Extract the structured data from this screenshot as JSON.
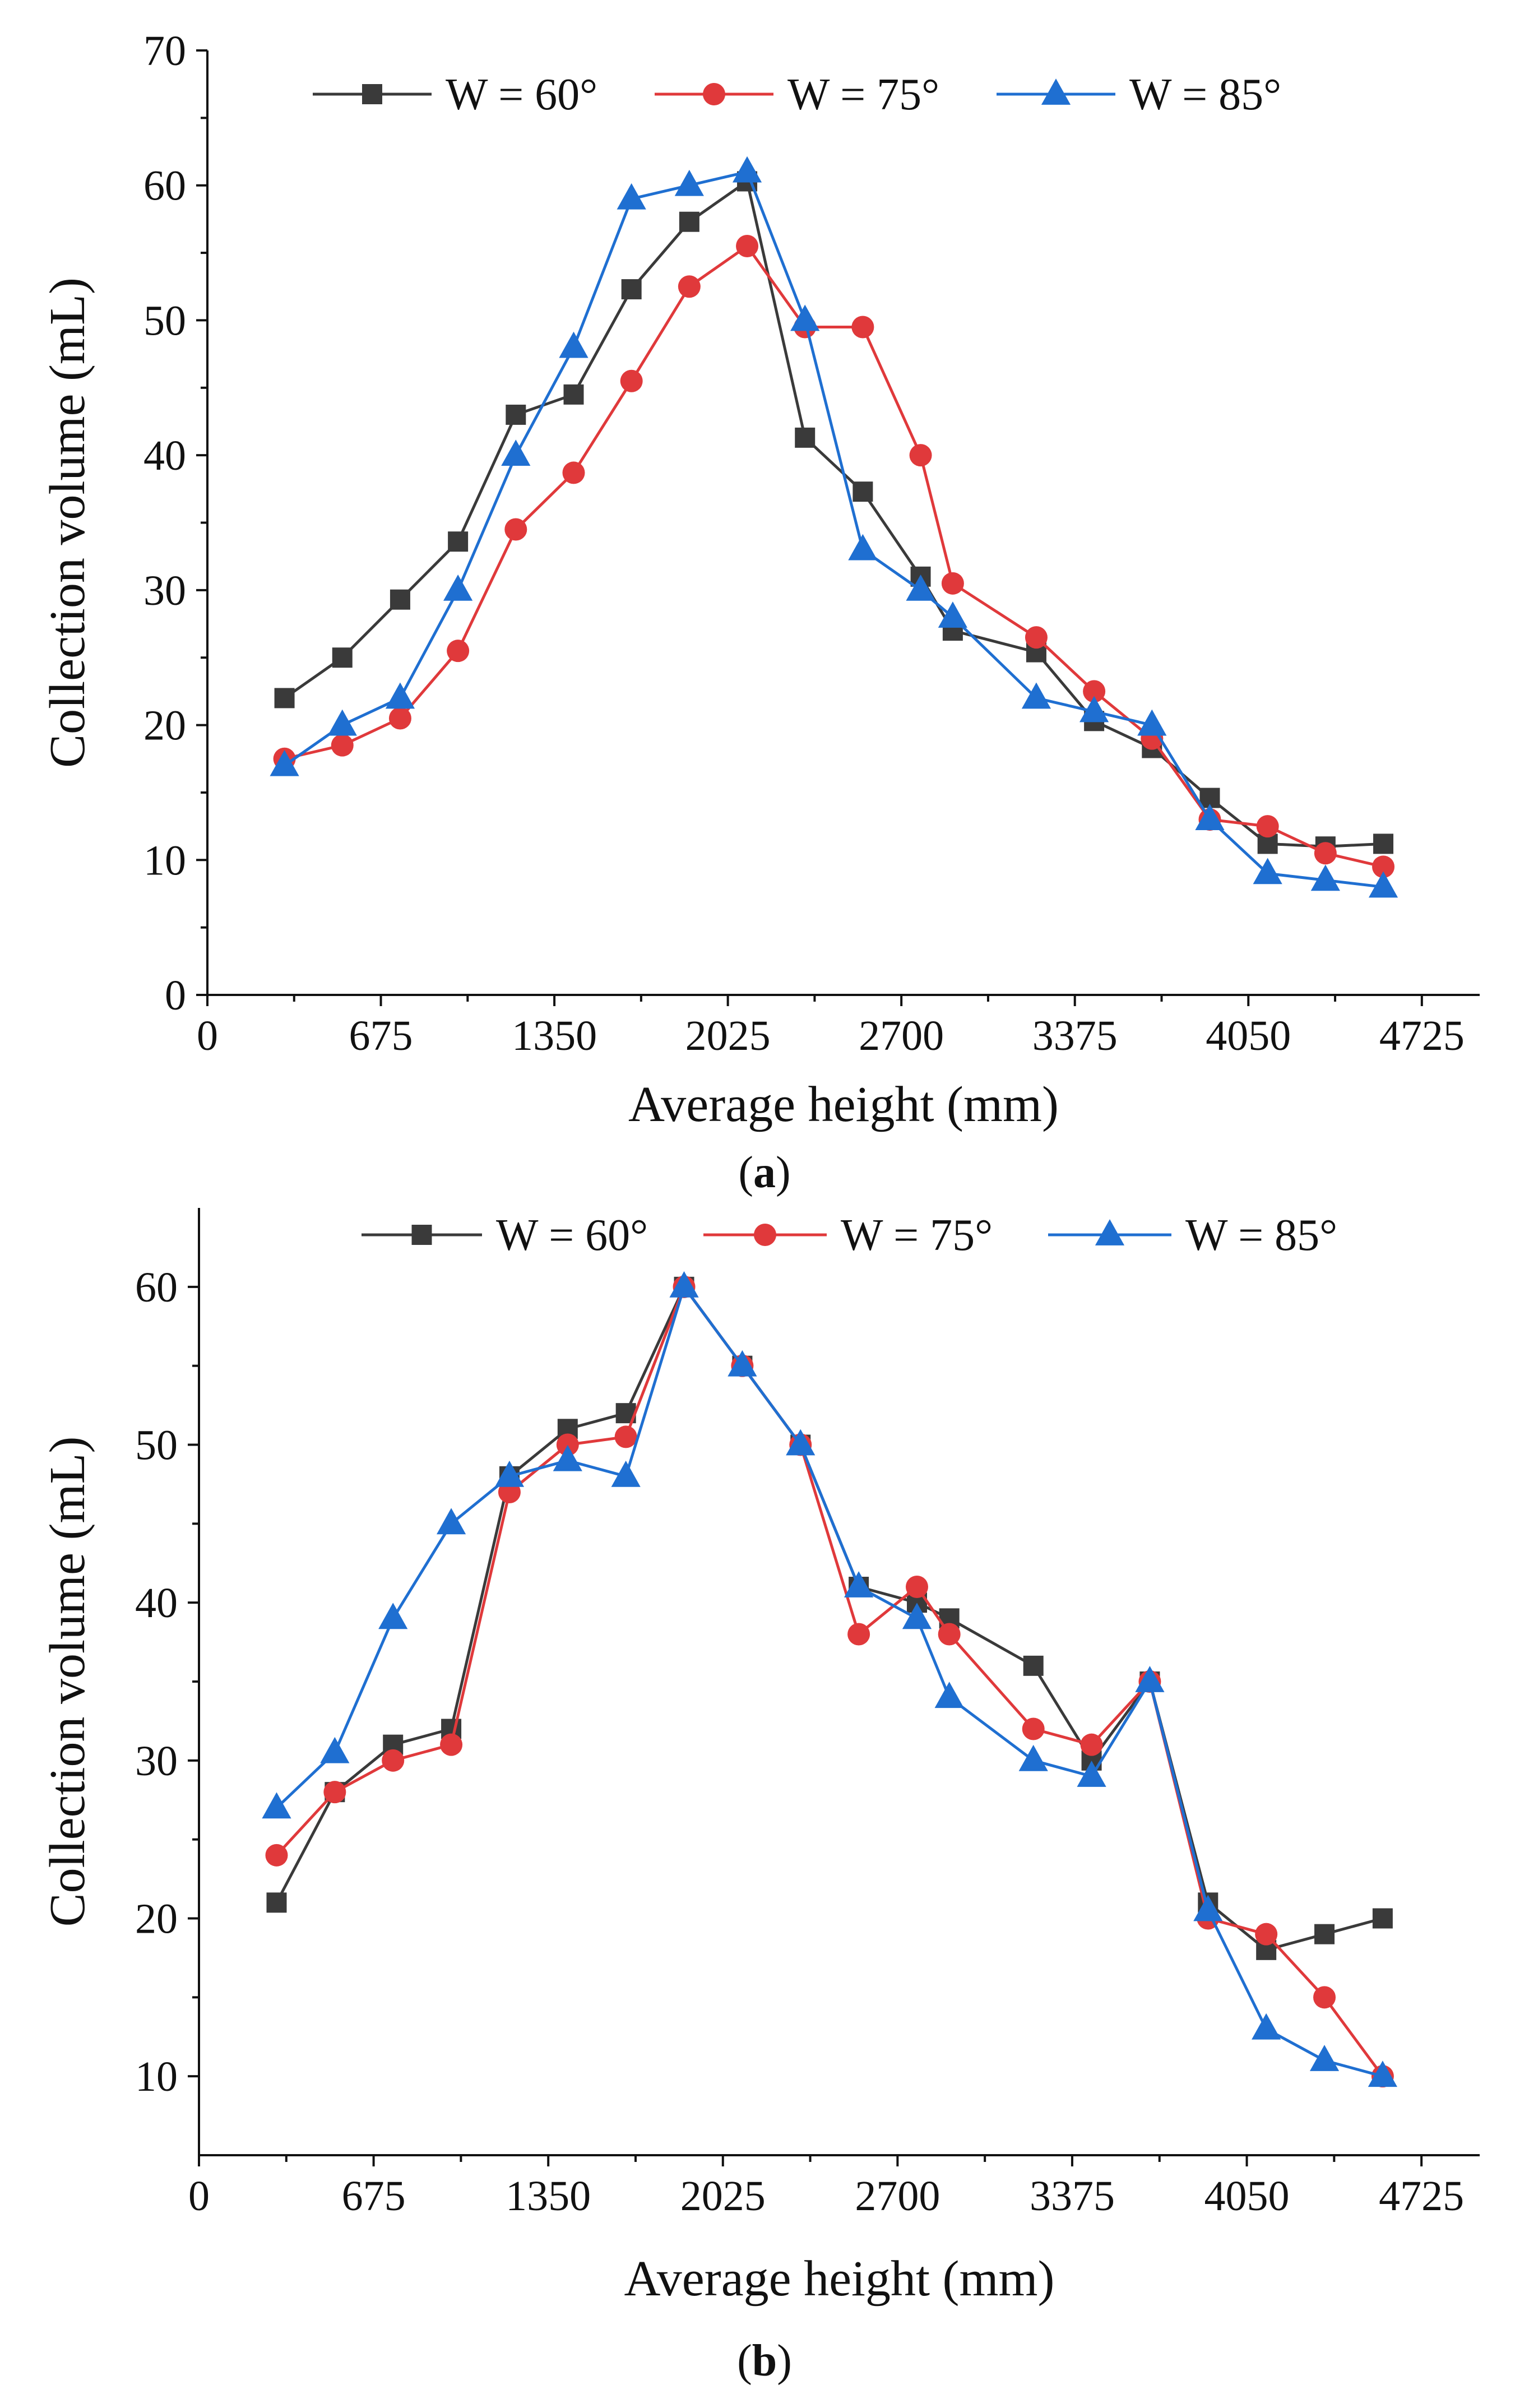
{
  "chart_data": [
    {
      "type": "line",
      "panel_label": "a",
      "xlabel": "Average height (mm)",
      "ylabel": "Collection volume (mL)",
      "xlim": [
        0,
        4950
      ],
      "ylim": [
        0,
        70
      ],
      "xticks": [
        0,
        675,
        1350,
        2025,
        2700,
        3375,
        4050,
        4725
      ],
      "yticks": [
        0,
        10,
        20,
        30,
        40,
        50,
        60,
        70
      ],
      "legend_position": "top",
      "x": [
        300,
        525,
        750,
        975,
        1200,
        1425,
        1650,
        1875,
        2100,
        2325,
        2550,
        2775,
        2900,
        3225,
        3450,
        3675,
        3900,
        4125,
        4350,
        4575
      ],
      "series": [
        {
          "name": "W = 60°",
          "marker": "square",
          "color": "#3a3a3a",
          "values": [
            22,
            25,
            29.3,
            33.6,
            43,
            44.5,
            52.3,
            57.3,
            60.3,
            41.3,
            37.3,
            31,
            27,
            25.4,
            20.3,
            18.3,
            14.6,
            11.2,
            11,
            11.2
          ]
        },
        {
          "name": "W = 75°",
          "marker": "circle",
          "color": "#e0393b",
          "values": [
            17.5,
            18.5,
            20.5,
            25.5,
            34.5,
            38.7,
            45.5,
            52.5,
            55.5,
            49.5,
            49.5,
            40,
            30.5,
            26.5,
            22.5,
            19,
            13,
            12.5,
            10.5,
            9.5
          ]
        },
        {
          "name": "W = 85°",
          "marker": "triangle",
          "color": "#1f6fd1",
          "values": [
            17,
            20,
            22,
            30,
            40,
            48,
            59,
            60,
            61,
            50,
            33,
            30,
            28,
            22,
            21,
            20,
            13,
            9,
            8.5,
            8
          ]
        }
      ]
    },
    {
      "type": "line",
      "panel_label": "b",
      "xlabel": "Average height (mm)",
      "ylabel": "Collection volume (mL)",
      "xlim": [
        0,
        4950
      ],
      "ylim": [
        5,
        65
      ],
      "xticks": [
        0,
        675,
        1350,
        2025,
        2700,
        3375,
        4050,
        4725
      ],
      "yticks": [
        10,
        20,
        30,
        40,
        50,
        60
      ],
      "legend_position": "top",
      "x": [
        300,
        525,
        750,
        975,
        1200,
        1425,
        1650,
        1875,
        2100,
        2325,
        2550,
        2775,
        2900,
        3225,
        3450,
        3675,
        3900,
        4125,
        4350,
        4575
      ],
      "series": [
        {
          "name": "W = 60°",
          "marker": "square",
          "color": "#3a3a3a",
          "values": [
            21,
            28,
            31,
            32,
            48,
            51,
            52,
            60,
            55,
            50,
            41,
            40,
            39,
            36,
            30,
            35,
            21,
            18,
            19,
            20
          ]
        },
        {
          "name": "W = 75°",
          "marker": "circle",
          "color": "#e0393b",
          "values": [
            24,
            28,
            30,
            31,
            47,
            50,
            50.5,
            60,
            55,
            50,
            38,
            41,
            38,
            32,
            31,
            35,
            20,
            19,
            15,
            10
          ]
        },
        {
          "name": "W = 85°",
          "marker": "triangle",
          "color": "#1f6fd1",
          "values": [
            27,
            30.5,
            39,
            45,
            48,
            49,
            48,
            60,
            55,
            50,
            41,
            39,
            34,
            30,
            29,
            35,
            20.5,
            13,
            11,
            10
          ]
        }
      ]
    }
  ]
}
